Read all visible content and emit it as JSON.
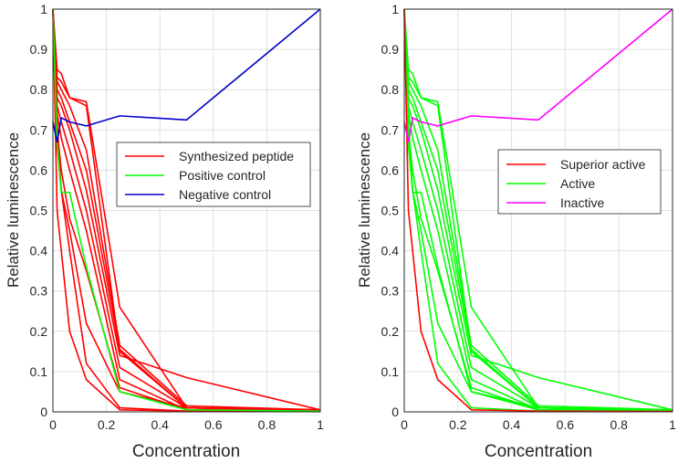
{
  "chart_data": [
    {
      "type": "line",
      "panel": "left",
      "xlabel": "Concentration",
      "ylabel": "Relative luminescence",
      "xlim": [
        0,
        1
      ],
      "ylim": [
        0,
        1
      ],
      "xticks": [
        "0",
        "0.2",
        "0.4",
        "0.6",
        "0.8",
        "1"
      ],
      "yticks": [
        "0",
        "0.1",
        "0.2",
        "0.3",
        "0.4",
        "0.5",
        "0.6",
        "0.7",
        "0.8",
        "0.9",
        "1"
      ],
      "x": [
        0,
        0.015625,
        0.03125,
        0.0625,
        0.125,
        0.25,
        0.5,
        1
      ],
      "legend_position": "center-right",
      "legend": [
        {
          "label": "Synthesized peptide",
          "color": "#ff0000"
        },
        {
          "label": "Positive control",
          "color": "#00ff00"
        },
        {
          "label": "Negative control",
          "color": "#0000cc"
        }
      ],
      "series": [
        {
          "name": "Synthesized peptide",
          "color": "#ff0000",
          "values": [
            1,
            0.85,
            0.84,
            0.78,
            0.76,
            0.15,
            0.01,
            0.005
          ]
        },
        {
          "name": "Synthesized peptide",
          "color": "#ff0000",
          "values": [
            1,
            0.83,
            0.82,
            0.78,
            0.77,
            0.26,
            0.01,
            0.005
          ]
        },
        {
          "name": "Synthesized peptide",
          "color": "#ff0000",
          "values": [
            1,
            0.82,
            0.8,
            0.76,
            0.65,
            0.165,
            0.015,
            0.005
          ]
        },
        {
          "name": "Synthesized peptide",
          "color": "#ff0000",
          "values": [
            1,
            0.8,
            0.78,
            0.72,
            0.6,
            0.155,
            0.01,
            0.005
          ]
        },
        {
          "name": "Synthesized peptide",
          "color": "#ff0000",
          "values": [
            1,
            0.78,
            0.76,
            0.7,
            0.55,
            0.14,
            0.085,
            0.005
          ]
        },
        {
          "name": "Synthesized peptide",
          "color": "#ff0000",
          "values": [
            1,
            0.76,
            0.72,
            0.65,
            0.5,
            0.11,
            0.01,
            0.005
          ]
        },
        {
          "name": "Synthesized peptide",
          "color": "#ff0000",
          "values": [
            1,
            0.74,
            0.68,
            0.6,
            0.45,
            0.08,
            0.005,
            0.003
          ]
        },
        {
          "name": "Synthesized peptide",
          "color": "#ff0000",
          "values": [
            1,
            0.7,
            0.6,
            0.48,
            0.35,
            0.06,
            0.005,
            0.003
          ]
        },
        {
          "name": "Synthesized peptide",
          "color": "#ff0000",
          "values": [
            1,
            0.66,
            0.55,
            0.45,
            0.22,
            0.05,
            0.01,
            0.003
          ]
        },
        {
          "name": "Synthesized peptide",
          "color": "#ff0000",
          "values": [
            1,
            0.72,
            0.55,
            0.4,
            0.12,
            0.01,
            0.002,
            0.001
          ]
        },
        {
          "name": "Synthesized peptide",
          "color": "#ff0000",
          "values": [
            1,
            0.5,
            0.4,
            0.2,
            0.08,
            0.005,
            0.002,
            0.001
          ]
        },
        {
          "name": "Positive control",
          "color": "#00ff00",
          "values": [
            1,
            0.67,
            0.545,
            0.545,
            0.36,
            0.05,
            0.005,
            0.002
          ]
        },
        {
          "name": "Negative control",
          "color": "#0000cc",
          "values": [
            0.72,
            0.67,
            0.73,
            0.72,
            0.71,
            0.735,
            0.725,
            1
          ]
        }
      ]
    },
    {
      "type": "line",
      "panel": "right",
      "xlabel": "Concentration",
      "ylabel": "Relative luminescence",
      "xlim": [
        0,
        1
      ],
      "ylim": [
        0,
        1
      ],
      "xticks": [
        "0",
        "0.2",
        "0.4",
        "0.6",
        "0.8",
        "1"
      ],
      "yticks": [
        "0",
        "0.1",
        "0.2",
        "0.3",
        "0.4",
        "0.5",
        "0.6",
        "0.7",
        "0.8",
        "0.9",
        "1"
      ],
      "x": [
        0,
        0.015625,
        0.03125,
        0.0625,
        0.125,
        0.25,
        0.5,
        1
      ],
      "legend_position": "center-right",
      "legend": [
        {
          "label": "Superior active",
          "color": "#ff0000"
        },
        {
          "label": "Active",
          "color": "#00ff00"
        },
        {
          "label": "Inactive",
          "color": "#ff00ff"
        }
      ],
      "series": [
        {
          "name": "Active",
          "color": "#00ff00",
          "values": [
            1,
            0.85,
            0.84,
            0.78,
            0.76,
            0.15,
            0.01,
            0.005
          ]
        },
        {
          "name": "Active",
          "color": "#00ff00",
          "values": [
            1,
            0.83,
            0.82,
            0.78,
            0.77,
            0.26,
            0.01,
            0.005
          ]
        },
        {
          "name": "Active",
          "color": "#00ff00",
          "values": [
            1,
            0.82,
            0.8,
            0.76,
            0.65,
            0.165,
            0.015,
            0.005
          ]
        },
        {
          "name": "Active",
          "color": "#00ff00",
          "values": [
            1,
            0.8,
            0.78,
            0.72,
            0.6,
            0.155,
            0.01,
            0.005
          ]
        },
        {
          "name": "Active",
          "color": "#00ff00",
          "values": [
            1,
            0.78,
            0.76,
            0.7,
            0.55,
            0.14,
            0.085,
            0.005
          ]
        },
        {
          "name": "Active",
          "color": "#00ff00",
          "values": [
            1,
            0.76,
            0.72,
            0.65,
            0.5,
            0.11,
            0.01,
            0.005
          ]
        },
        {
          "name": "Active",
          "color": "#00ff00",
          "values": [
            1,
            0.74,
            0.68,
            0.6,
            0.45,
            0.08,
            0.005,
            0.003
          ]
        },
        {
          "name": "Active",
          "color": "#00ff00",
          "values": [
            1,
            0.7,
            0.6,
            0.48,
            0.35,
            0.06,
            0.005,
            0.003
          ]
        },
        {
          "name": "Active",
          "color": "#00ff00",
          "values": [
            1,
            0.66,
            0.55,
            0.45,
            0.22,
            0.05,
            0.01,
            0.003
          ]
        },
        {
          "name": "Active",
          "color": "#00ff00",
          "values": [
            1,
            0.72,
            0.55,
            0.4,
            0.12,
            0.01,
            0.002,
            0.001
          ]
        },
        {
          "name": "Active",
          "color": "#00ff00",
          "values": [
            1,
            0.67,
            0.545,
            0.545,
            0.36,
            0.05,
            0.005,
            0.002
          ]
        },
        {
          "name": "Superior active",
          "color": "#ff0000",
          "values": [
            1,
            0.5,
            0.4,
            0.2,
            0.08,
            0.005,
            0.002,
            0.001
          ]
        },
        {
          "name": "Inactive",
          "color": "#ff00ff",
          "values": [
            0.72,
            0.67,
            0.73,
            0.72,
            0.71,
            0.735,
            0.725,
            1
          ]
        }
      ]
    }
  ]
}
